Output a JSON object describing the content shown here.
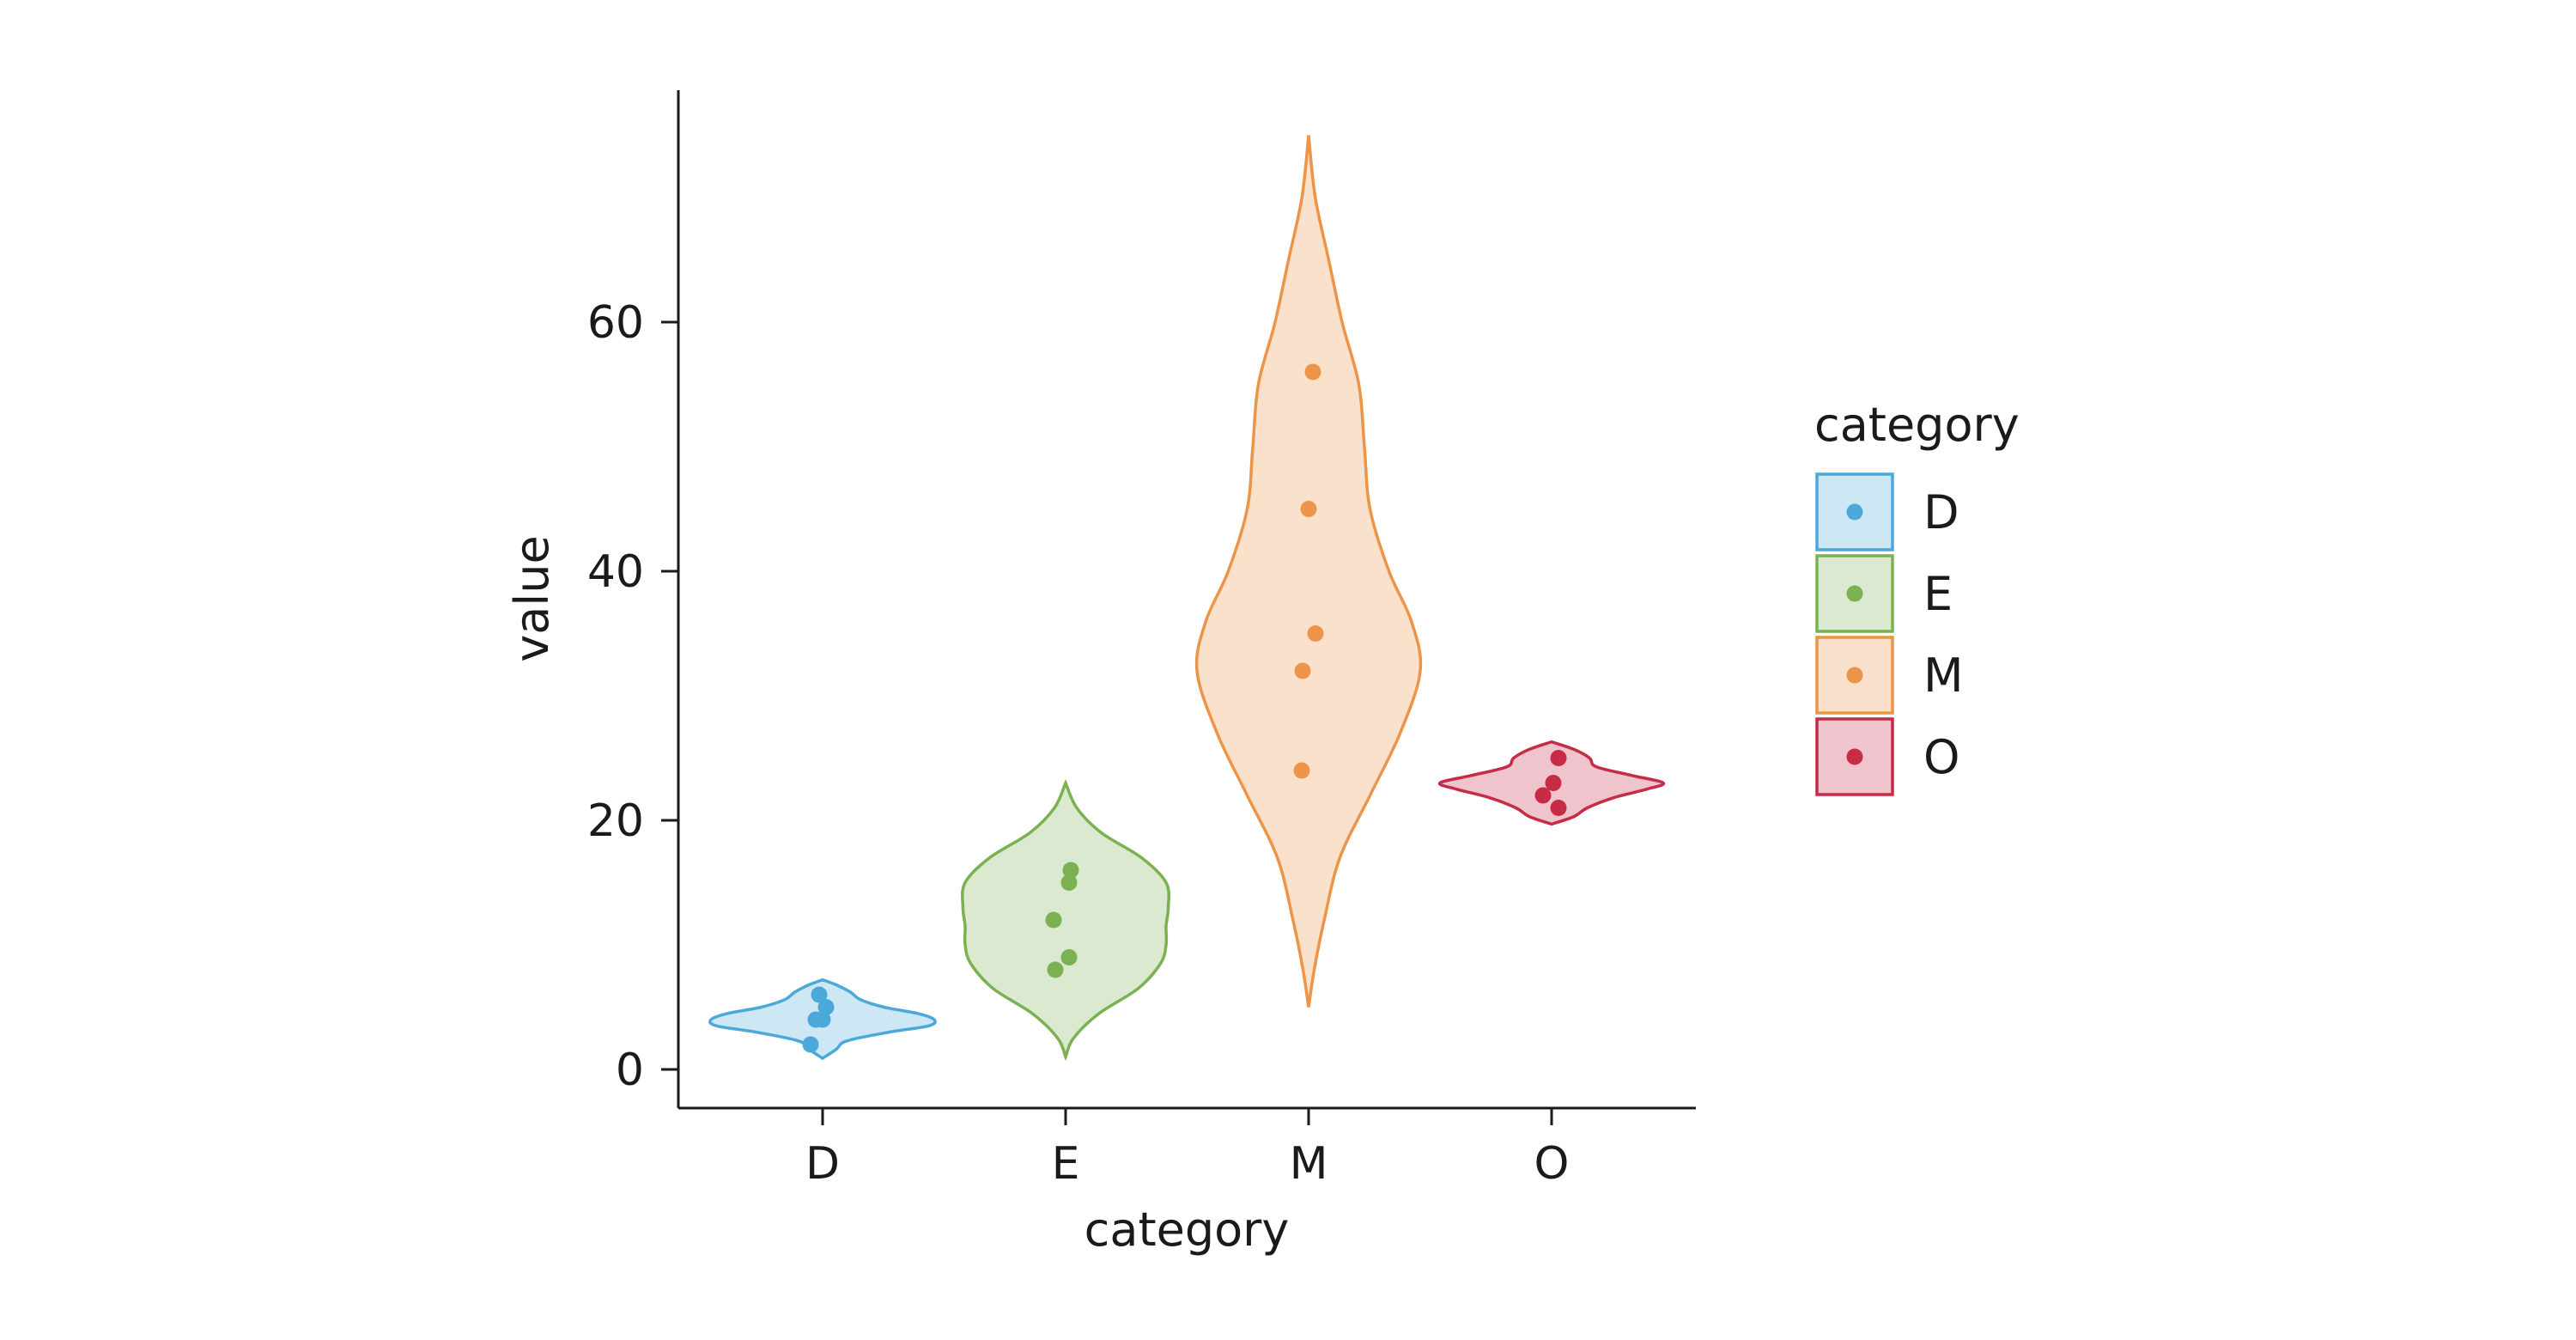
{
  "chart_data": {
    "type": "violin",
    "xlabel": "category",
    "ylabel": "value",
    "categories": [
      "D",
      "E",
      "M",
      "O"
    ],
    "y_ticks": [
      0,
      20,
      40,
      60
    ],
    "ylim": [
      -3,
      79
    ],
    "grid": false,
    "legend": {
      "title": "category",
      "placement": "right",
      "entries": [
        "D",
        "E",
        "M",
        "O"
      ]
    },
    "colors": {
      "D": "#4ba9d9",
      "E": "#7bb151",
      "M": "#ec9447",
      "O": "#c72c47"
    },
    "series": [
      {
        "category": "D",
        "points": [
          6,
          5,
          4,
          4,
          2
        ],
        "violin_range": [
          0.9,
          7.2
        ],
        "density": [
          [
            0.9,
            0.0
          ],
          [
            1.6,
            0.12
          ],
          [
            2.3,
            0.22
          ],
          [
            3.0,
            0.6
          ],
          [
            3.5,
            0.95
          ],
          [
            4.0,
            1.0
          ],
          [
            4.5,
            0.85
          ],
          [
            5.0,
            0.55
          ],
          [
            5.6,
            0.34
          ],
          [
            6.2,
            0.25
          ],
          [
            6.8,
            0.12
          ],
          [
            7.2,
            0.0
          ]
        ]
      },
      {
        "category": "E",
        "points": [
          16,
          15,
          12,
          9,
          8
        ],
        "violin_range": [
          1.0,
          23.0
        ],
        "density": [
          [
            1.0,
            0.0
          ],
          [
            2.5,
            0.07
          ],
          [
            4.5,
            0.3
          ],
          [
            6.5,
            0.65
          ],
          [
            8.5,
            0.85
          ],
          [
            10.0,
            0.9
          ],
          [
            11.5,
            0.9
          ],
          [
            13.0,
            0.92
          ],
          [
            15.0,
            0.9
          ],
          [
            17.0,
            0.68
          ],
          [
            19.0,
            0.32
          ],
          [
            21.0,
            0.1
          ],
          [
            23.0,
            0.0
          ]
        ]
      },
      {
        "category": "M",
        "points": [
          56,
          45,
          35,
          32,
          24
        ],
        "violin_range": [
          5.0,
          75.0
        ],
        "density": [
          [
            5.0,
            0.0
          ],
          [
            8.0,
            0.05
          ],
          [
            12.0,
            0.14
          ],
          [
            17.0,
            0.28
          ],
          [
            22.0,
            0.55
          ],
          [
            27.0,
            0.82
          ],
          [
            32.0,
            1.0
          ],
          [
            36.0,
            0.92
          ],
          [
            40.0,
            0.72
          ],
          [
            45.0,
            0.55
          ],
          [
            50.0,
            0.5
          ],
          [
            55.0,
            0.45
          ],
          [
            60.0,
            0.3
          ],
          [
            65.0,
            0.18
          ],
          [
            70.0,
            0.06
          ],
          [
            75.0,
            0.0
          ]
        ]
      },
      {
        "category": "O",
        "points": [
          25,
          23,
          22,
          21
        ],
        "violin_range": [
          19.7,
          26.3
        ],
        "density": [
          [
            19.7,
            0.0
          ],
          [
            20.3,
            0.2
          ],
          [
            21.0,
            0.32
          ],
          [
            21.8,
            0.55
          ],
          [
            22.5,
            0.85
          ],
          [
            23.0,
            1.0
          ],
          [
            23.6,
            0.72
          ],
          [
            24.3,
            0.4
          ],
          [
            25.0,
            0.34
          ],
          [
            25.7,
            0.2
          ],
          [
            26.3,
            0.0
          ]
        ]
      }
    ]
  }
}
